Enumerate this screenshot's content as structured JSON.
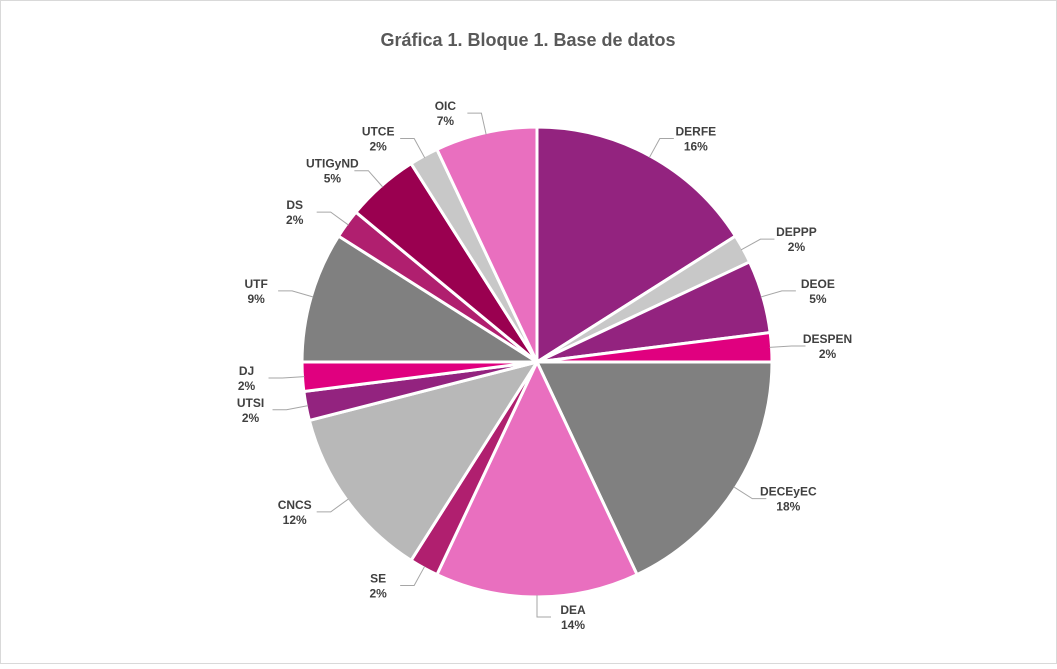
{
  "chart_data": {
    "type": "pie",
    "title": "Gráfica 1. Bloque 1. Base de datos",
    "categories": [
      "DERFE",
      "DEPPP",
      "DEOE",
      "DESPEN",
      "DECEyEC",
      "DEA",
      "SE",
      "CNCS",
      "UTSI",
      "DJ",
      "UTF",
      "DS",
      "UTIGyND",
      "UTCE",
      "OIC"
    ],
    "values": [
      16,
      2,
      5,
      2,
      18,
      14,
      2,
      12,
      2,
      2,
      9,
      2,
      5,
      2,
      7
    ],
    "value_labels": [
      "16%",
      "2%",
      "5%",
      "2%",
      "18%",
      "14%",
      "2%",
      "12%",
      "2%",
      "2%",
      "9%",
      "2%",
      "5%",
      "2%",
      "7%"
    ],
    "colors": [
      "#93237f",
      "#c8c8c8",
      "#93237f",
      "#e0007f",
      "#808080",
      "#e96fbf",
      "#b01f6f",
      "#b8b8b8",
      "#93237f",
      "#e0007f",
      "#808080",
      "#b01f6f",
      "#9a0050",
      "#c8c8c8",
      "#e96fbf"
    ]
  }
}
